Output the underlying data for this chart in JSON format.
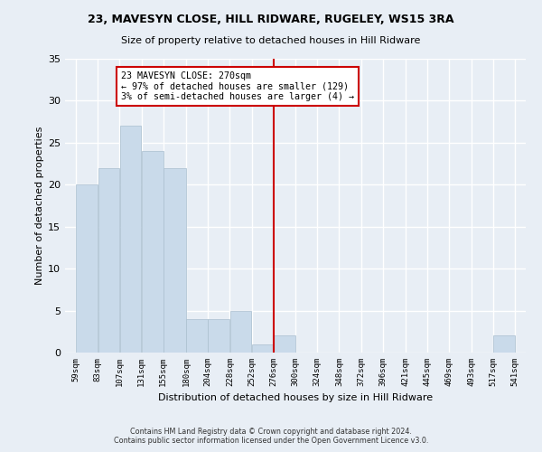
{
  "title1": "23, MAVESYN CLOSE, HILL RIDWARE, RUGELEY, WS15 3RA",
  "title2": "Size of property relative to detached houses in Hill Ridware",
  "xlabel": "Distribution of detached houses by size in Hill Ridware",
  "ylabel": "Number of detached properties",
  "bar_color": "#c9daea",
  "bar_edge_color": "#aabfcf",
  "vline_color": "#cc0000",
  "annotation_text": "23 MAVESYN CLOSE: 270sqm\n← 97% of detached houses are smaller (129)\n3% of semi-detached houses are larger (4) →",
  "annotation_box_color": "#cc0000",
  "bins": [
    59,
    83,
    107,
    131,
    155,
    180,
    204,
    228,
    252,
    276,
    300,
    324,
    348,
    372,
    396,
    421,
    445,
    469,
    493,
    517,
    541
  ],
  "bin_labels": [
    "59sqm",
    "83sqm",
    "107sqm",
    "131sqm",
    "155sqm",
    "180sqm",
    "204sqm",
    "228sqm",
    "252sqm",
    "276sqm",
    "300sqm",
    "324sqm",
    "348sqm",
    "372sqm",
    "396sqm",
    "421sqm",
    "445sqm",
    "469sqm",
    "493sqm",
    "517sqm",
    "541sqm"
  ],
  "counts": [
    20,
    22,
    27,
    24,
    22,
    4,
    4,
    5,
    1,
    2,
    0,
    0,
    0,
    0,
    0,
    0,
    0,
    0,
    0,
    2,
    0
  ],
  "ylim": [
    0,
    35
  ],
  "yticks": [
    0,
    5,
    10,
    15,
    20,
    25,
    30,
    35
  ],
  "background_color": "#e8eef5",
  "grid_color": "#ffffff",
  "footnote1": "Contains HM Land Registry data © Crown copyright and database right 2024.",
  "footnote2": "Contains public sector information licensed under the Open Government Licence v3.0."
}
